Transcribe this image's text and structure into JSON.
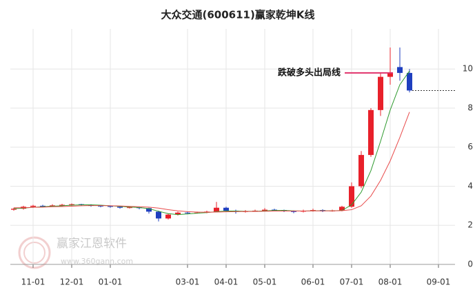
{
  "chart_data": {
    "type": "candlestick",
    "title": "大众交通(600611)赢家乾坤K线",
    "categories": [
      null,
      null,
      "11-01",
      null,
      null,
      null,
      "12-01",
      null,
      null,
      null,
      "01-01",
      null,
      null,
      null,
      null,
      null,
      null,
      null,
      "03-01",
      null,
      null,
      null,
      "04-01",
      null,
      null,
      null,
      "05-01",
      null,
      null,
      null,
      null,
      "06-01",
      null,
      null,
      null,
      "07-01",
      null,
      null,
      null,
      "08-01",
      null,
      null,
      null,
      null,
      "09-01",
      null
    ],
    "open": [
      2.8,
      2.85,
      2.95,
      3.0,
      2.98,
      3.02,
      3.05,
      3.08,
      3.05,
      3.0,
      2.98,
      2.95,
      2.9,
      2.92,
      2.88,
      2.7,
      2.35,
      2.55,
      2.65,
      2.62,
      2.65,
      2.7,
      2.9,
      2.75,
      2.7,
      2.72,
      2.75,
      2.8,
      2.78,
      2.72,
      2.7,
      2.75,
      2.78,
      2.72,
      2.75,
      2.95,
      4.0,
      5.6,
      7.9,
      9.6,
      10.1,
      9.8,
      null,
      null,
      null,
      null
    ],
    "high": [
      2.9,
      3.0,
      3.05,
      3.05,
      3.08,
      3.1,
      3.12,
      3.1,
      3.08,
      3.05,
      3.0,
      2.98,
      2.98,
      2.95,
      2.9,
      2.75,
      2.6,
      2.7,
      2.7,
      2.7,
      2.75,
      3.2,
      2.95,
      2.8,
      2.78,
      2.8,
      2.88,
      2.85,
      2.8,
      2.76,
      2.8,
      2.85,
      2.82,
      2.8,
      3.0,
      4.2,
      5.8,
      8.0,
      9.8,
      11.1,
      11.1,
      10.0,
      null,
      null,
      null,
      null
    ],
    "low": [
      2.75,
      2.8,
      2.9,
      2.92,
      2.95,
      2.98,
      3.0,
      3.0,
      2.95,
      2.92,
      2.9,
      2.85,
      2.86,
      2.82,
      2.6,
      2.2,
      2.3,
      2.5,
      2.58,
      2.6,
      2.62,
      2.68,
      2.7,
      2.6,
      2.65,
      2.7,
      2.72,
      2.74,
      2.68,
      2.62,
      2.66,
      2.7,
      2.68,
      2.7,
      2.72,
      2.9,
      3.9,
      5.5,
      7.6,
      9.2,
      9.4,
      8.8,
      null,
      null,
      null,
      null
    ],
    "close": [
      2.85,
      2.95,
      3.0,
      2.98,
      3.02,
      3.05,
      3.08,
      3.05,
      3.0,
      2.98,
      2.95,
      2.9,
      2.92,
      2.88,
      2.7,
      2.35,
      2.55,
      2.65,
      2.62,
      2.65,
      2.7,
      2.9,
      2.75,
      2.7,
      2.72,
      2.75,
      2.8,
      2.78,
      2.72,
      2.7,
      2.75,
      2.78,
      2.72,
      2.75,
      2.95,
      4.0,
      5.6,
      7.9,
      9.6,
      9.8,
      9.8,
      8.9,
      null,
      null,
      null,
      null
    ],
    "up_color": "#e8202a",
    "down_color": "#1f3fbf",
    "lines": [
      {
        "color": "#2e9a2e",
        "values": [
          2.85,
          2.88,
          2.92,
          2.95,
          2.98,
          3.0,
          3.03,
          3.05,
          3.05,
          3.03,
          3.0,
          2.97,
          2.94,
          2.91,
          2.85,
          2.72,
          2.6,
          2.55,
          2.58,
          2.62,
          2.65,
          2.7,
          2.73,
          2.73,
          2.72,
          2.72,
          2.74,
          2.76,
          2.76,
          2.74,
          2.73,
          2.74,
          2.75,
          2.74,
          2.76,
          3.05,
          3.7,
          4.8,
          6.3,
          7.9,
          9.2,
          9.9,
          null,
          null,
          null,
          null
        ]
      },
      {
        "color": "#e84a4a",
        "values": [
          2.9,
          2.9,
          2.92,
          2.93,
          2.95,
          2.96,
          2.98,
          3.0,
          3.01,
          3.01,
          3.0,
          2.99,
          2.97,
          2.95,
          2.93,
          2.88,
          2.8,
          2.74,
          2.7,
          2.68,
          2.67,
          2.68,
          2.69,
          2.7,
          2.71,
          2.71,
          2.72,
          2.73,
          2.73,
          2.73,
          2.73,
          2.74,
          2.74,
          2.74,
          2.75,
          2.8,
          3.0,
          3.5,
          4.3,
          5.3,
          6.5,
          7.8,
          null,
          null,
          null,
          null
        ]
      }
    ],
    "annotation": {
      "text": "跌破多头出局线",
      "value": 9.8,
      "color": "#e0306a"
    },
    "last_price": 8.9,
    "ylim": [
      0,
      11.7
    ],
    "yticks": [
      0,
      2,
      4,
      6,
      8,
      10
    ],
    "grid": true,
    "watermark": {
      "name": "赢家江恩软件",
      "url": "www.360gann.com"
    }
  }
}
